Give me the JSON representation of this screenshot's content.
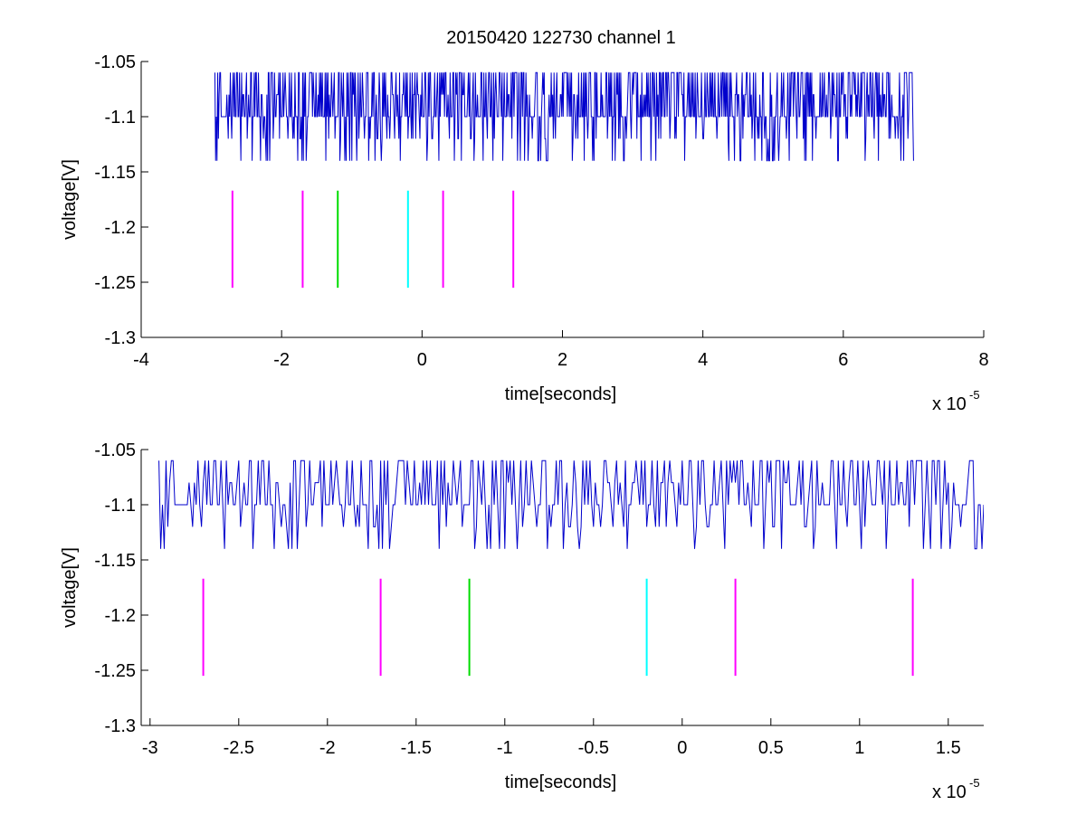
{
  "figure": {
    "title": "20150420 122730 channel 1",
    "background": "#ffffff"
  },
  "chart_data": [
    {
      "type": "line",
      "xlabel": "time[seconds]",
      "ylabel": "voltage[V]",
      "x_exponent_label": "x 10",
      "x_exponent": "-5",
      "xlim": [
        -4e-05,
        8e-05
      ],
      "ylim": [
        -1.3,
        -1.05
      ],
      "xticks": [
        -4e-05,
        -2e-05,
        0,
        2e-05,
        4e-05,
        6e-05,
        8e-05
      ],
      "xtick_labels": [
        "-4",
        "-2",
        "0",
        "2",
        "4",
        "6",
        "8"
      ],
      "yticks": [
        -1.05,
        -1.1,
        -1.15,
        -1.2,
        -1.25,
        -1.3
      ],
      "ytick_labels": [
        "-1.05",
        "-1.1",
        "-1.15",
        "-1.2",
        "-1.25",
        "-1.3"
      ],
      "grid": false,
      "signal": {
        "color": "#0000cc",
        "t_start": -2.95e-05,
        "t_end": 7e-05,
        "dt": 1e-07,
        "baseline": -1.1,
        "levels": [
          -1.06,
          -1.08,
          -1.1,
          -1.12,
          -1.14
        ],
        "seed": 7
      },
      "markers": [
        {
          "x": -2.7e-05,
          "y_top": -1.167,
          "y_bottom": -1.255,
          "color": "#ff00ff"
        },
        {
          "x": -1.7e-05,
          "y_top": -1.167,
          "y_bottom": -1.255,
          "color": "#ff00ff"
        },
        {
          "x": -1.2e-05,
          "y_top": -1.167,
          "y_bottom": -1.255,
          "color": "#00dd00"
        },
        {
          "x": -2e-06,
          "y_top": -1.167,
          "y_bottom": -1.255,
          "color": "#00ffff"
        },
        {
          "x": 3e-06,
          "y_top": -1.167,
          "y_bottom": -1.255,
          "color": "#ff00ff"
        },
        {
          "x": 1.3e-05,
          "y_top": -1.167,
          "y_bottom": -1.255,
          "color": "#ff00ff"
        }
      ]
    },
    {
      "type": "line",
      "xlabel": "time[seconds]",
      "ylabel": "voltage[V]",
      "x_exponent_label": "x 10",
      "x_exponent": "-5",
      "xlim": [
        -3.05e-05,
        1.7e-05
      ],
      "ylim": [
        -1.3,
        -1.05
      ],
      "xticks": [
        -3e-05,
        -2.5e-05,
        -2e-05,
        -1.5e-05,
        -1e-05,
        -5e-06,
        0,
        5e-06,
        1e-05,
        1.5e-05
      ],
      "xtick_labels": [
        "-3",
        "-2.5",
        "-2",
        "-1.5",
        "-1",
        "-0.5",
        "0",
        "0.5",
        "1",
        "1.5"
      ],
      "yticks": [
        -1.05,
        -1.1,
        -1.15,
        -1.2,
        -1.25,
        -1.3
      ],
      "ytick_labels": [
        "-1.05",
        "-1.1",
        "-1.15",
        "-1.2",
        "-1.25",
        "-1.3"
      ],
      "grid": false,
      "signal": {
        "color": "#0000cc",
        "t_start": -2.95e-05,
        "t_end": 1.7e-05,
        "dt": 1e-07,
        "baseline": -1.1,
        "levels": [
          -1.06,
          -1.08,
          -1.1,
          -1.12,
          -1.14
        ],
        "seed": 7
      },
      "markers": [
        {
          "x": -2.7e-05,
          "y_top": -1.167,
          "y_bottom": -1.255,
          "color": "#ff00ff"
        },
        {
          "x": -1.7e-05,
          "y_top": -1.167,
          "y_bottom": -1.255,
          "color": "#ff00ff"
        },
        {
          "x": -1.2e-05,
          "y_top": -1.167,
          "y_bottom": -1.255,
          "color": "#00dd00"
        },
        {
          "x": -2e-06,
          "y_top": -1.167,
          "y_bottom": -1.255,
          "color": "#00ffff"
        },
        {
          "x": 3e-06,
          "y_top": -1.167,
          "y_bottom": -1.255,
          "color": "#ff00ff"
        },
        {
          "x": 1.3e-05,
          "y_top": -1.167,
          "y_bottom": -1.255,
          "color": "#ff00ff"
        }
      ]
    }
  ]
}
